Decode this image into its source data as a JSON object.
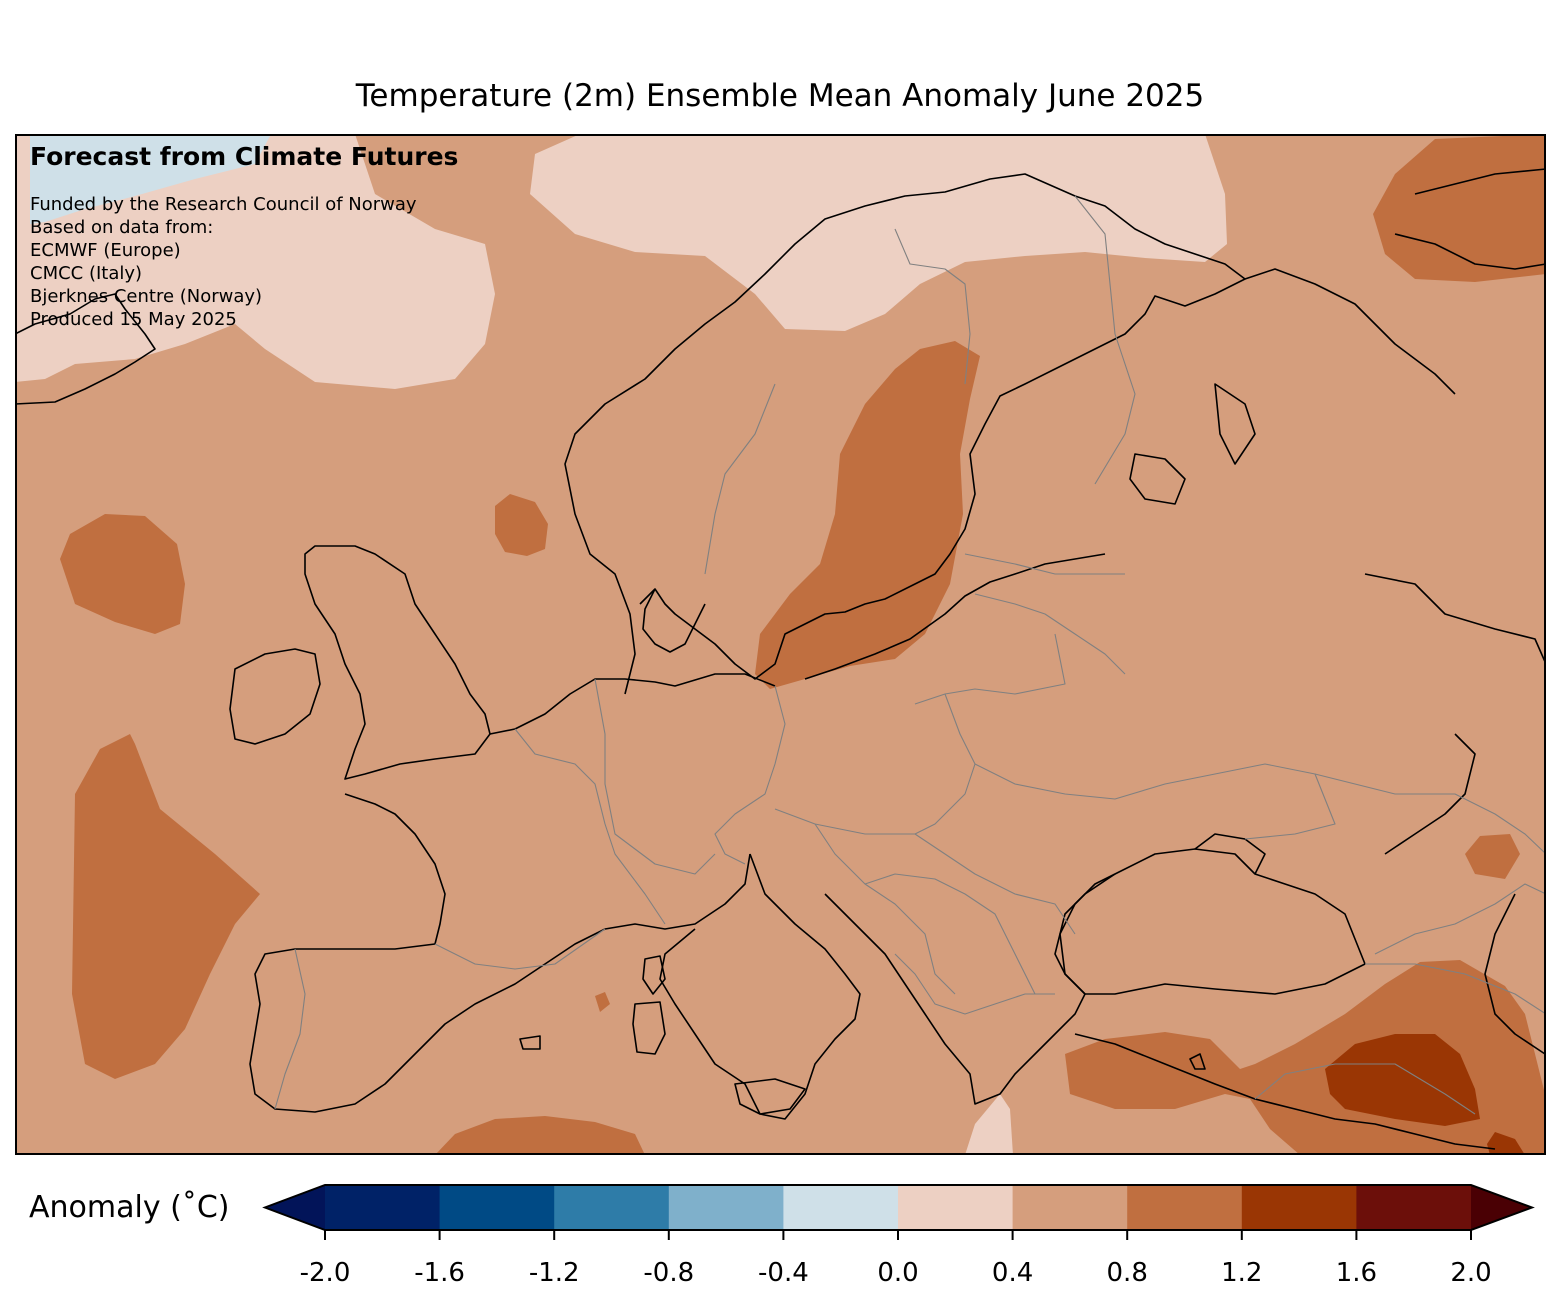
{
  "title": "Temperature (2m) Ensemble Mean Anomaly June 2025",
  "credit": {
    "heading": "Forecast from Climate Futures",
    "lines": [
      "Funded by the Research Council of Norway",
      "Based on data from:",
      "ECMWF (Europe)",
      "CMCC (Italy)",
      "Bjerknes Centre (Norway)",
      "Produced 15 May 2025"
    ]
  },
  "colorbar": {
    "label": "Anomaly (˚C)",
    "ticks": [
      "-2.0",
      "-1.6",
      "-1.2",
      "-0.8",
      "-0.4",
      "0.0",
      "0.4",
      "0.8",
      "1.2",
      "1.6",
      "2.0"
    ],
    "colors": [
      "#021459",
      "#002267",
      "#004a85",
      "#2e7ca8",
      "#7fb0cb",
      "#cfe0e8",
      "#edd0c3",
      "#d59e7d",
      "#c06f40",
      "#9a3604",
      "#6c0f0a",
      "#4a0004"
    ]
  },
  "map_colors": {
    "base": "#d59e7d",
    "light": "#edd0c3",
    "pale_blue": "#cfe0e8",
    "warm": "#c06f40",
    "hot": "#9a3604",
    "coast": "#000000",
    "border": "#808080"
  }
}
